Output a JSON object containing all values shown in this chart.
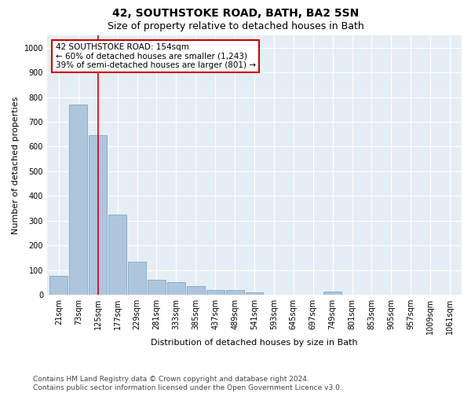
{
  "title": "42, SOUTHSTOKE ROAD, BATH, BA2 5SN",
  "subtitle": "Size of property relative to detached houses in Bath",
  "xlabel": "Distribution of detached houses by size in Bath",
  "ylabel": "Number of detached properties",
  "bar_color": "#aec6dc",
  "bar_edge_color": "#6a9fc0",
  "bg_color": "#e6eef5",
  "grid_color": "#ffffff",
  "annotation_box_color": "#cc0000",
  "annotation_text": "42 SOUTHSTOKE ROAD: 154sqm\n← 60% of detached houses are smaller (1,243)\n39% of semi-detached houses are larger (801) →",
  "vline_x": 2,
  "vline_color": "#cc0000",
  "categories": [
    "21sqm",
    "73sqm",
    "125sqm",
    "177sqm",
    "229sqm",
    "281sqm",
    "333sqm",
    "385sqm",
    "437sqm",
    "489sqm",
    "541sqm",
    "593sqm",
    "645sqm",
    "697sqm",
    "749sqm",
    "801sqm",
    "853sqm",
    "905sqm",
    "957sqm",
    "1009sqm",
    "1061sqm"
  ],
  "bar_heights": [
    75,
    770,
    645,
    325,
    135,
    60,
    50,
    35,
    20,
    18,
    10,
    0,
    0,
    0,
    13,
    0,
    0,
    0,
    0,
    0,
    0
  ],
  "ylim": [
    0,
    1050
  ],
  "yticks": [
    0,
    100,
    200,
    300,
    400,
    500,
    600,
    700,
    800,
    900,
    1000
  ],
  "footer_text": "Contains HM Land Registry data © Crown copyright and database right 2024.\nContains public sector information licensed under the Open Government Licence v3.0.",
  "title_fontsize": 10,
  "subtitle_fontsize": 9,
  "axis_label_fontsize": 8,
  "tick_fontsize": 7,
  "annotation_fontsize": 7.5,
  "footer_fontsize": 6.5
}
